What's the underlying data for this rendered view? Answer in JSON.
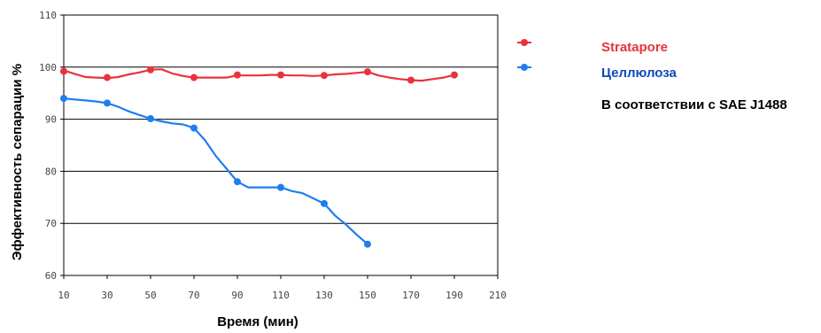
{
  "chart_data": {
    "type": "line",
    "xlabel": "Время (мин)",
    "ylabel": "Эффективность сепарации %",
    "x_ticks": [
      10,
      30,
      50,
      70,
      90,
      110,
      130,
      150,
      170,
      190,
      210
    ],
    "y_ticks": [
      60,
      70,
      80,
      90,
      100,
      110
    ],
    "xlim": [
      10,
      210
    ],
    "ylim": [
      60,
      110
    ],
    "grid": "horizontal",
    "legend_position": "right",
    "series": [
      {
        "name": "Stratapore",
        "color": "#e8333c",
        "x": [
          10,
          30,
          50,
          70,
          90,
          110,
          130,
          150,
          170,
          190
        ],
        "y": [
          99.2,
          98.0,
          99.5,
          98.0,
          98.5,
          98.5,
          98.4,
          99.1,
          97.5,
          98.5
        ],
        "curve_x": [
          10,
          12,
          15,
          20,
          25,
          30,
          35,
          40,
          45,
          50,
          55,
          60,
          65,
          70,
          75,
          80,
          85,
          90,
          95,
          100,
          105,
          110,
          115,
          120,
          125,
          130,
          135,
          140,
          145,
          150,
          155,
          160,
          165,
          170,
          175,
          180,
          185,
          190
        ],
        "curve_y": [
          99.2,
          99.1,
          98.7,
          98.1,
          98.0,
          97.9,
          98.1,
          98.6,
          99.0,
          99.5,
          99.6,
          98.8,
          98.3,
          98.0,
          98.0,
          98.0,
          98.0,
          98.4,
          98.4,
          98.4,
          98.5,
          98.5,
          98.4,
          98.4,
          98.3,
          98.4,
          98.6,
          98.7,
          98.9,
          99.1,
          98.4,
          98.0,
          97.7,
          97.5,
          97.4,
          97.7,
          98.0,
          98.5
        ]
      },
      {
        "name": "Целлюлоза",
        "color": "#1e7ef0",
        "x": [
          10,
          30,
          50,
          70,
          90,
          110,
          130,
          150
        ],
        "y": [
          94.0,
          93.1,
          90.1,
          88.3,
          78.0,
          76.9,
          73.8,
          66.0
        ],
        "curve_x": [
          10,
          15,
          20,
          25,
          30,
          35,
          40,
          45,
          50,
          55,
          60,
          65,
          70,
          75,
          80,
          85,
          90,
          95,
          100,
          105,
          110,
          115,
          120,
          125,
          130,
          135,
          140,
          145,
          150
        ],
        "curve_y": [
          94.0,
          93.8,
          93.6,
          93.4,
          93.1,
          92.4,
          91.5,
          90.8,
          90.1,
          89.6,
          89.2,
          89.0,
          88.3,
          86.0,
          83.0,
          80.5,
          78.0,
          76.9,
          76.9,
          76.9,
          76.9,
          76.2,
          75.8,
          74.8,
          73.8,
          71.5,
          69.8,
          67.8,
          66.0
        ]
      }
    ],
    "legend_note": "В соответствии с SAE J1488"
  }
}
